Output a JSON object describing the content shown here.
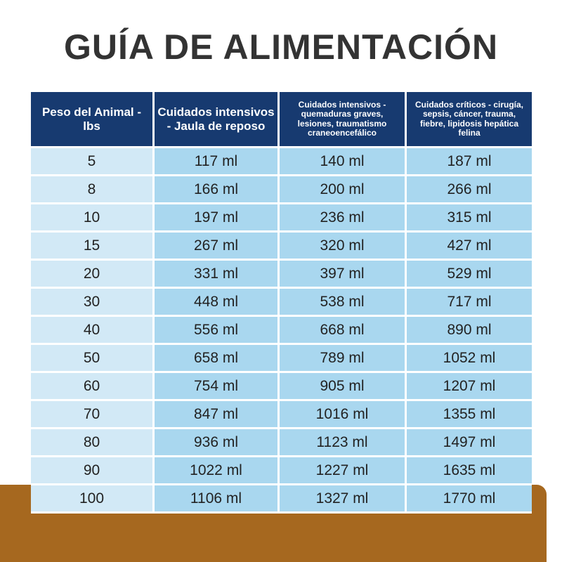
{
  "header": {
    "title": "GUÍA DE ALIMENTACIÓN"
  },
  "table": {
    "columns": [
      "Peso del Animal - lbs",
      "Cuidados intensivos - Jaula de reposo",
      "Cuidados intensivos - quemaduras graves, lesiones, traumatismo craneoencefálico",
      "Cuidados críticos - cirugía, sepsis, cáncer, trauma, fiebre, lipidosis hepática felina"
    ],
    "rows": [
      [
        "5",
        "117 ml",
        "140 ml",
        "187 ml"
      ],
      [
        "8",
        "166 ml",
        "200 ml",
        "266 ml"
      ],
      [
        "10",
        "197 ml",
        "236 ml",
        "315 ml"
      ],
      [
        "15",
        "267 ml",
        "320 ml",
        "427 ml"
      ],
      [
        "20",
        "331 ml",
        "397 ml",
        "529 ml"
      ],
      [
        "30",
        "448 ml",
        "538 ml",
        "717 ml"
      ],
      [
        "40",
        "556 ml",
        "668 ml",
        "890 ml"
      ],
      [
        "50",
        "658 ml",
        "789 ml",
        "1052 ml"
      ],
      [
        "60",
        "754 ml",
        "905 ml",
        "1207 ml"
      ],
      [
        "70",
        "847 ml",
        "1016 ml",
        "1355 ml"
      ],
      [
        "80",
        "936 ml",
        "1123 ml",
        "1497 ml"
      ],
      [
        "90",
        "1022 ml",
        "1227 ml",
        "1635 ml"
      ],
      [
        "100",
        "1106 ml",
        "1327 ml",
        "1770 ml"
      ]
    ]
  }
}
